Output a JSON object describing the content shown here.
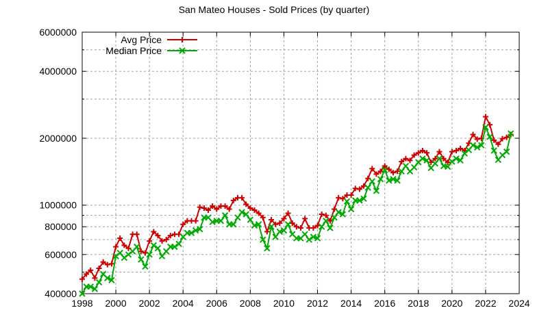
{
  "chart_data": {
    "type": "line",
    "title": "San Mateo Houses - Sold Prices (by quarter)",
    "xlabel": "",
    "ylabel": "",
    "xlim": [
      1998,
      2024
    ],
    "ylim": [
      400000,
      6000000
    ],
    "yscale": "log",
    "grid": true,
    "legend_position": "top-left",
    "x_ticks": [
      "1998",
      "2000",
      "2002",
      "2004",
      "2006",
      "2008",
      "2010",
      "2012",
      "2014",
      "2016",
      "2018",
      "2020",
      "2022",
      "2024"
    ],
    "y_ticks": [
      "400000",
      "600000",
      "800000",
      "1000000",
      "2000000",
      "4000000",
      "6000000"
    ],
    "x_start": 1998,
    "x_step": 0.25,
    "series": [
      {
        "name": "Avg Price",
        "color": "#cc0000",
        "marker": "plus",
        "values": [
          465000,
          490000,
          510000,
          470000,
          520000,
          555000,
          540000,
          545000,
          650000,
          710000,
          660000,
          640000,
          740000,
          740000,
          620000,
          610000,
          690000,
          760000,
          730000,
          690000,
          700000,
          730000,
          740000,
          740000,
          820000,
          850000,
          850000,
          850000,
          980000,
          970000,
          950000,
          990000,
          960000,
          990000,
          990000,
          960000,
          1050000,
          1080000,
          1080000,
          1010000,
          970000,
          950000,
          920000,
          880000,
          760000,
          860000,
          820000,
          830000,
          870000,
          920000,
          830000,
          800000,
          790000,
          870000,
          790000,
          790000,
          810000,
          910000,
          900000,
          850000,
          960000,
          1080000,
          1070000,
          1110000,
          1110000,
          1190000,
          1180000,
          1220000,
          1320000,
          1460000,
          1380000,
          1420000,
          1500000,
          1450000,
          1400000,
          1420000,
          1570000,
          1620000,
          1590000,
          1680000,
          1720000,
          1760000,
          1720000,
          1560000,
          1620000,
          1740000,
          1620000,
          1560000,
          1740000,
          1760000,
          1800000,
          1760000,
          1900000,
          2080000,
          1980000,
          2000000,
          2500000,
          2300000,
          1960000,
          1880000,
          1990000,
          2020000,
          2080000
        ]
      },
      {
        "name": "Median Price",
        "color": "#00aa00",
        "marker": "cross",
        "values": [
          400000,
          430000,
          430000,
          420000,
          450000,
          490000,
          470000,
          460000,
          590000,
          610000,
          580000,
          600000,
          620000,
          650000,
          570000,
          530000,
          600000,
          660000,
          640000,
          590000,
          620000,
          650000,
          650000,
          670000,
          720000,
          750000,
          750000,
          770000,
          780000,
          880000,
          880000,
          840000,
          850000,
          850000,
          900000,
          820000,
          820000,
          880000,
          930000,
          910000,
          860000,
          810000,
          820000,
          700000,
          640000,
          800000,
          720000,
          760000,
          770000,
          820000,
          740000,
          710000,
          710000,
          740000,
          700000,
          720000,
          710000,
          800000,
          850000,
          790000,
          880000,
          930000,
          910000,
          1040000,
          960000,
          1050000,
          1050000,
          1070000,
          1200000,
          1280000,
          1160000,
          1310000,
          1440000,
          1290000,
          1310000,
          1290000,
          1420000,
          1500000,
          1420000,
          1480000,
          1560000,
          1620000,
          1590000,
          1470000,
          1540000,
          1620000,
          1500000,
          1490000,
          1570000,
          1620000,
          1590000,
          1710000,
          1770000,
          1860000,
          1820000,
          1860000,
          2240000,
          2030000,
          1760000,
          1600000,
          1680000,
          1740000,
          2100000
        ]
      }
    ]
  }
}
